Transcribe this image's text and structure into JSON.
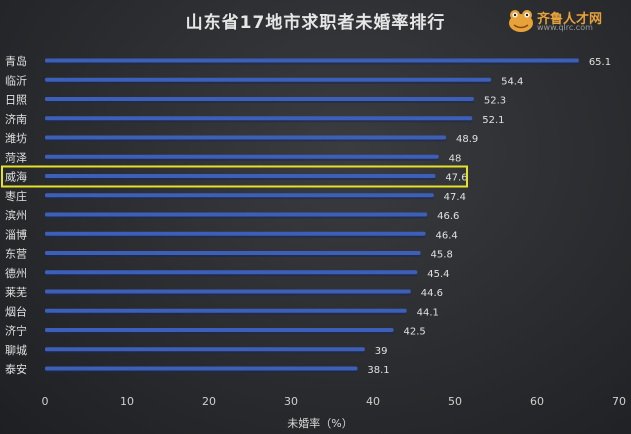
{
  "header": {
    "title": "山东省17地市求职者未婚率排行"
  },
  "logo": {
    "brand_text": "齐鲁人才网",
    "site_text": "www.qlrc.com",
    "icon": "frog-mascot-icon",
    "color": "#e8a23a"
  },
  "chart_data": {
    "type": "bar",
    "orientation": "horizontal",
    "title": "山东省17地市求职者未婚率排行",
    "xlabel": "未婚率（%）",
    "ylabel": "",
    "xlim": [
      0,
      70
    ],
    "xticks": [
      0,
      10,
      20,
      30,
      40,
      50,
      60,
      70
    ],
    "grid": false,
    "categories": [
      "青岛",
      "临沂",
      "日照",
      "济南",
      "潍坊",
      "菏泽",
      "威海",
      "枣庄",
      "滨州",
      "淄博",
      "东营",
      "德州",
      "莱芜",
      "烟台",
      "济宁",
      "聊城",
      "泰安"
    ],
    "values": [
      65.1,
      54.4,
      52.3,
      52.1,
      48.9,
      48,
      47.6,
      47.4,
      46.6,
      46.4,
      45.8,
      45.4,
      44.6,
      44.1,
      42.5,
      39,
      38.1
    ],
    "highlight": "威海",
    "colors": {
      "bar": "#3d5fb8",
      "highlight_box": "#e6e12a",
      "text": "#e0e0e0",
      "axis_text": "#cfcfcf"
    }
  }
}
